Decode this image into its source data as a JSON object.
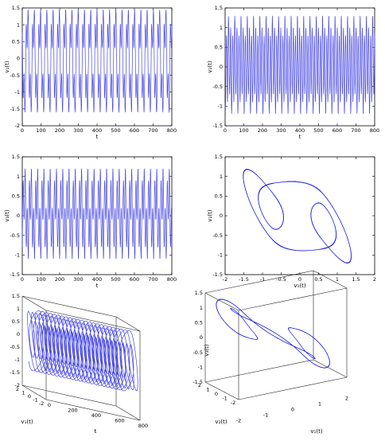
{
  "chart_data": [
    {
      "id": "p1",
      "type": "line",
      "xlabel": "t",
      "ylabel": "v₁(t)",
      "xlim": [
        0,
        800
      ],
      "ylim": [
        -2,
        1.5
      ],
      "xticks": [
        0,
        100,
        200,
        300,
        400,
        500,
        600,
        700,
        800
      ],
      "yticks": [
        -2,
        -1.5,
        -1,
        -0.5,
        0,
        0.5,
        1,
        1.5
      ],
      "color": "#4a4ae6",
      "series": [
        {
          "signal": "v1",
          "x_range": [
            0,
            800
          ],
          "y_range": [
            -1.6,
            1.45
          ]
        }
      ]
    },
    {
      "id": "p2",
      "type": "line",
      "xlabel": "t",
      "ylabel": "v₂(t)",
      "xlim": [
        0,
        800
      ],
      "ylim": [
        -1.5,
        1.5
      ],
      "xticks": [
        0,
        100,
        200,
        300,
        400,
        500,
        600,
        700,
        800
      ],
      "yticks": [
        -1.5,
        -1,
        -0.5,
        0,
        0.5,
        1,
        1.5
      ],
      "color": "#4a4ae6",
      "series": [
        {
          "signal": "v2",
          "x_range": [
            0,
            800
          ],
          "y_range": [
            -1.2,
            1.3
          ]
        }
      ]
    },
    {
      "id": "p3",
      "type": "line",
      "xlabel": "t",
      "ylabel": "v₃(t)",
      "xlim": [
        0,
        800
      ],
      "ylim": [
        -1.5,
        1.5
      ],
      "xticks": [
        0,
        100,
        200,
        300,
        400,
        500,
        600,
        700,
        800
      ],
      "yticks": [
        -1.5,
        -1,
        -0.5,
        0,
        0.5,
        1,
        1.5
      ],
      "color": "#4a4ae6",
      "series": [
        {
          "signal": "v3",
          "x_range": [
            0,
            800
          ],
          "y_range": [
            -1.1,
            1.2
          ]
        }
      ]
    },
    {
      "id": "p4",
      "type": "scatter",
      "xlabel": "v₁(t)",
      "ylabel": "v₂(t)",
      "xlim": [
        -2,
        2
      ],
      "ylim": [
        -1.5,
        1.5
      ],
      "xticks": [
        -2,
        -1.5,
        -1,
        -0.5,
        0,
        0.5,
        1,
        1.5,
        2
      ],
      "yticks": [
        -1.5,
        -1,
        -0.5,
        0,
        0.5,
        1,
        1.5
      ],
      "color": "#1f1fe0",
      "series": [
        {
          "signal": "phase v1-v2"
        }
      ]
    },
    {
      "id": "p5",
      "type": "line",
      "xlabel": "t",
      "ylabel": "v₁(t)",
      "zlabel": "",
      "xlim": [
        0,
        800
      ],
      "ylim": [
        -2,
        2
      ],
      "zlim": [
        -2,
        1.5
      ],
      "xticks": [
        0,
        200,
        400,
        600,
        800
      ],
      "yticks": [
        -2,
        -1,
        0,
        1,
        2
      ],
      "zticks": [
        -2,
        -1.5,
        -1,
        -0.5,
        0,
        0.5,
        1,
        1.5
      ],
      "color": "#4a4ae6"
    },
    {
      "id": "p6",
      "type": "scatter",
      "xlabel": "v₁(t)",
      "ylabel": "v₂(t)",
      "zlabel": "v₃(t)",
      "xlim": [
        -2,
        2
      ],
      "ylim": [
        -2,
        2
      ],
      "zlim": [
        -1.5,
        1.5
      ],
      "xticks": [
        -2,
        -1,
        0,
        1,
        2
      ],
      "yticks": [
        -2,
        -1,
        0,
        1,
        2
      ],
      "zticks": [
        -1.5,
        -1,
        -0.5,
        0,
        0.5,
        1,
        1.5
      ],
      "color": "#1f1fe0"
    }
  ]
}
